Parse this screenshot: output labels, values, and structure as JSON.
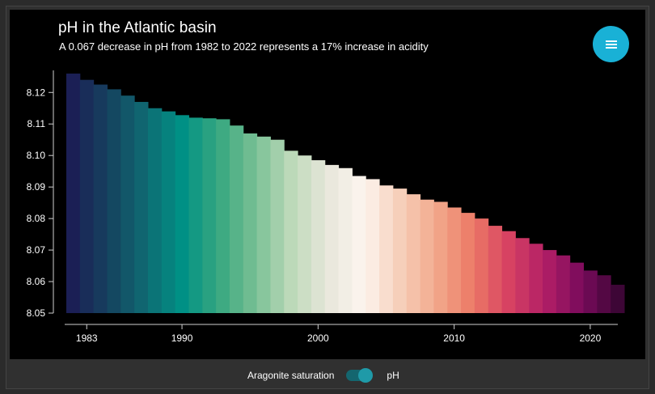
{
  "header": {
    "title": "pH in the Atlantic basin",
    "subtitle": "A 0.067 decrease in pH from 1982 to 2022 represents a 17% increase in acidity"
  },
  "menu_button": {
    "icon": "hamburger-menu-icon",
    "color": "#19b1d6"
  },
  "toggle": {
    "left_label": "Aragonite saturation",
    "right_label": "pH",
    "state": "pH"
  },
  "chart_data": {
    "type": "bar",
    "title": "pH in the Atlantic basin",
    "subtitle": "A 0.067 decrease in pH from 1982 to 2022 represents a 17% increase in acidity",
    "xlabel": "",
    "ylabel": "",
    "x": [
      1982,
      1983,
      1984,
      1985,
      1986,
      1987,
      1988,
      1989,
      1990,
      1991,
      1992,
      1993,
      1994,
      1995,
      1996,
      1997,
      1998,
      1999,
      2000,
      2001,
      2002,
      2003,
      2004,
      2005,
      2006,
      2007,
      2008,
      2009,
      2010,
      2011,
      2012,
      2013,
      2014,
      2015,
      2016,
      2017,
      2018,
      2019,
      2020,
      2021,
      2022
    ],
    "values": [
      8.126,
      8.124,
      8.1225,
      8.121,
      8.119,
      8.117,
      8.115,
      8.114,
      8.1128,
      8.112,
      8.1118,
      8.1115,
      8.1095,
      8.107,
      8.106,
      8.105,
      8.1015,
      8.1,
      8.0985,
      8.097,
      8.096,
      8.0935,
      8.0925,
      8.0905,
      8.0895,
      8.0877,
      8.086,
      8.0853,
      8.0835,
      8.0818,
      8.08,
      8.0777,
      8.076,
      8.0738,
      8.072,
      8.07,
      8.0683,
      8.066,
      8.0635,
      8.062,
      8.059
    ],
    "ylim": [
      8.05,
      8.127
    ],
    "yticks": [
      8.05,
      8.06,
      8.07,
      8.08,
      8.09,
      8.1,
      8.11,
      8.12
    ],
    "ytick_labels": [
      "8.05",
      "8.06",
      "8.07",
      "8.08",
      "8.09",
      "8.10",
      "8.11",
      "8.12"
    ],
    "xticks": [
      1983,
      1990,
      2000,
      2010,
      2020
    ],
    "xtick_labels": [
      "1983",
      "1990",
      "2000",
      "2010",
      "2020"
    ],
    "colormap": [
      "#1b1f55",
      "#15435f",
      "#0f6a72",
      "#009085",
      "#36a77f",
      "#77bf93",
      "#bcd9b9",
      "#e7e6da",
      "#fdf5ef",
      "#f6cfba",
      "#f2a98c",
      "#ec7a66",
      "#d74262",
      "#b21e66",
      "#7a0b5c",
      "#3d0636"
    ],
    "grid": false,
    "legend": "none"
  }
}
